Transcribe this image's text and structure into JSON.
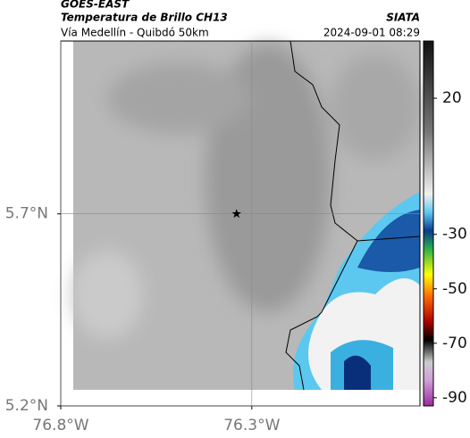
{
  "header": {
    "satellite": "GOES-EAST",
    "product": "Temperatura de Brillo CH13",
    "agency": "SIATA",
    "location": "Vía Medellín - Quibdó 50km",
    "datetime": "2024-09-01 08:29"
  },
  "map": {
    "xlim": [
      -76.8,
      -75.86
    ],
    "ylim": [
      5.2,
      6.15
    ],
    "xticks": [
      {
        "value": -76.8,
        "label": "76.8°W"
      },
      {
        "value": -76.3,
        "label": "76.3°W"
      }
    ],
    "yticks": [
      {
        "value": 5.2,
        "label": "5.2°N"
      },
      {
        "value": 5.7,
        "label": "5.7°N"
      }
    ],
    "grid": true,
    "marker": {
      "lon": -76.34,
      "lat": 5.7
    }
  },
  "colorbar": {
    "lim": [
      -93,
      41
    ],
    "ticks": [
      20,
      -30,
      -50,
      -70,
      -90
    ]
  }
}
